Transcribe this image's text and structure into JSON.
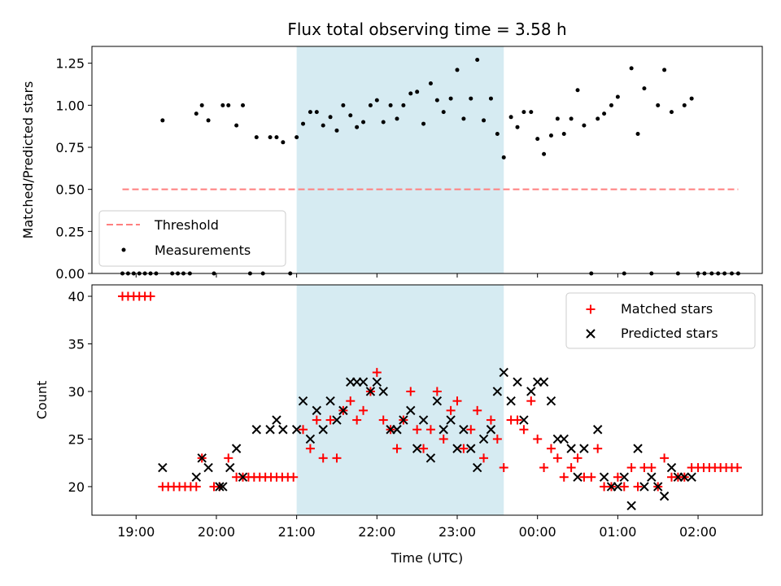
{
  "chart_data": [
    {
      "type": "scatter",
      "title": "Flux total observing time = 3.58 h",
      "xlabel": "",
      "ylabel": "Matched/Predicted stars",
      "xlim": [
        18.45,
        26.8
      ],
      "ylim": [
        0,
        1.35
      ],
      "yticks": [
        0,
        0.25,
        0.5,
        0.75,
        1.0,
        1.25
      ],
      "ytick_labels": [
        "0.00",
        "0.25",
        "0.50",
        "0.75",
        "1.00",
        "1.25"
      ],
      "shaded_region": {
        "x_start": 21.0,
        "x_end": 23.58,
        "color": "#add8e6"
      },
      "legend": {
        "position": "lower-left",
        "entries": [
          "Threshold",
          "Measurements"
        ]
      },
      "series": [
        {
          "name": "Threshold",
          "kind": "dashed-line",
          "color": "#ff7f7f",
          "x": [
            18.83,
            26.5
          ],
          "y": [
            0.5,
            0.5
          ]
        },
        {
          "name": "Measurements",
          "kind": "points",
          "color": "#000000",
          "x": [
            18.83,
            18.9,
            18.97,
            19.04,
            19.11,
            19.18,
            19.25,
            19.33,
            19.45,
            19.52,
            19.59,
            19.67,
            19.75,
            19.82,
            19.9,
            19.97,
            20.08,
            20.15,
            20.25,
            20.33,
            20.42,
            20.5,
            20.58,
            20.67,
            20.75,
            20.83,
            20.92,
            21.0,
            21.08,
            21.17,
            21.25,
            21.33,
            21.42,
            21.5,
            21.58,
            21.67,
            21.75,
            21.83,
            21.92,
            22.0,
            22.08,
            22.17,
            22.25,
            22.33,
            22.42,
            22.5,
            22.58,
            22.67,
            22.75,
            22.83,
            22.92,
            23.0,
            23.08,
            23.17,
            23.25,
            23.33,
            23.42,
            23.5,
            23.58,
            23.67,
            23.75,
            23.83,
            23.92,
            24.0,
            24.08,
            24.17,
            24.25,
            24.33,
            24.42,
            24.5,
            24.58,
            24.67,
            24.75,
            24.83,
            24.92,
            25.0,
            25.08,
            25.17,
            25.25,
            25.33,
            25.42,
            25.5,
            25.58,
            25.67,
            25.75,
            25.83,
            25.92,
            26.0,
            26.08,
            26.17,
            26.25,
            26.33,
            26.42,
            26.5
          ],
          "y": [
            0,
            0,
            0,
            0,
            0,
            0,
            0,
            0.91,
            0,
            0,
            0,
            0,
            0.95,
            1.0,
            0.91,
            0,
            1.0,
            1.0,
            0.88,
            1.0,
            0,
            0.81,
            0,
            0.81,
            0.81,
            0.78,
            0,
            0.81,
            0.89,
            0.96,
            0.96,
            0.88,
            0.93,
            0.85,
            1.0,
            0.94,
            0.87,
            0.9,
            1.0,
            1.03,
            0.9,
            1.0,
            0.92,
            1.0,
            1.07,
            1.08,
            0.89,
            1.13,
            1.03,
            0.96,
            1.04,
            1.21,
            0.92,
            1.04,
            1.27,
            0.91,
            1.04,
            0.83,
            0.69,
            0.93,
            0.87,
            0.96,
            0.96,
            0.8,
            0.71,
            0.82,
            0.92,
            0.83,
            0.92,
            1.09,
            0.88,
            0,
            0.92,
            0.95,
            1.0,
            1.05,
            0,
            1.22,
            0.83,
            1.1,
            0,
            1.0,
            1.21,
            0.96,
            0,
            1.0,
            1.04,
            0,
            0,
            0,
            0,
            0,
            0,
            0
          ]
        }
      ]
    },
    {
      "type": "scatter",
      "title": "",
      "xlabel": "Time (UTC)",
      "ylabel": "Count",
      "xlim": [
        18.45,
        26.8
      ],
      "ylim": [
        17,
        41.2
      ],
      "yticks": [
        20,
        25,
        30,
        35,
        40
      ],
      "ytick_labels": [
        "20",
        "25",
        "30",
        "35",
        "40"
      ],
      "xticks": [
        19,
        20,
        21,
        22,
        23,
        24,
        25,
        26
      ],
      "xtick_labels": [
        "19:00",
        "20:00",
        "21:00",
        "22:00",
        "23:00",
        "00:00",
        "01:00",
        "02:00"
      ],
      "shaded_region": {
        "x_start": 21.0,
        "x_end": 23.58,
        "color": "#add8e6"
      },
      "legend": {
        "position": "upper-right",
        "entries": [
          "Matched stars",
          "Predicted stars"
        ]
      },
      "series": [
        {
          "name": "Matched stars",
          "marker": "plus",
          "color": "#ff0000",
          "x": [
            18.83,
            18.9,
            18.97,
            19.04,
            19.11,
            19.18,
            19.33,
            19.4,
            19.47,
            19.54,
            19.61,
            19.68,
            19.75,
            19.82,
            19.97,
            20.04,
            20.15,
            20.25,
            20.33,
            20.4,
            20.47,
            20.54,
            20.61,
            20.68,
            20.75,
            20.82,
            20.89,
            20.96,
            21.08,
            21.17,
            21.25,
            21.33,
            21.42,
            21.5,
            21.58,
            21.67,
            21.75,
            21.83,
            21.92,
            22.0,
            22.08,
            22.17,
            22.25,
            22.33,
            22.42,
            22.5,
            22.58,
            22.67,
            22.75,
            22.83,
            22.92,
            23.0,
            23.08,
            23.17,
            23.25,
            23.33,
            23.42,
            23.5,
            23.58,
            23.67,
            23.75,
            23.83,
            23.92,
            24.0,
            24.08,
            24.17,
            24.25,
            24.33,
            24.42,
            24.5,
            24.58,
            24.67,
            24.75,
            24.83,
            24.92,
            25.0,
            25.08,
            25.17,
            25.25,
            25.33,
            25.42,
            25.5,
            25.58,
            25.67,
            25.75,
            25.83,
            25.92,
            26.0,
            26.07,
            26.14,
            26.21,
            26.28,
            26.35,
            26.42,
            26.49
          ],
          "y": [
            40,
            40,
            40,
            40,
            40,
            40,
            20,
            20,
            20,
            20,
            20,
            20,
            20,
            23,
            20,
            20,
            23,
            21,
            21,
            21,
            21,
            21,
            21,
            21,
            21,
            21,
            21,
            21,
            26,
            24,
            27,
            23,
            27,
            23,
            28,
            29,
            27,
            28,
            30,
            32,
            27,
            26,
            24,
            27,
            30,
            26,
            24,
            26,
            30,
            25,
            28,
            29,
            24,
            26,
            28,
            23,
            27,
            25,
            22,
            27,
            27,
            26,
            29,
            25,
            22,
            24,
            23,
            21,
            22,
            23,
            21,
            21,
            24,
            20,
            20,
            21,
            20,
            22,
            20,
            22,
            22,
            20,
            23,
            21,
            21,
            21,
            22,
            22,
            22,
            22,
            22,
            22,
            22,
            22,
            22
          ]
        },
        {
          "name": "Predicted stars",
          "marker": "x",
          "color": "#000000",
          "x": [
            19.33,
            19.75,
            19.82,
            19.9,
            20.04,
            20.08,
            20.17,
            20.25,
            20.33,
            20.5,
            20.67,
            20.75,
            20.83,
            21.0,
            21.08,
            21.17,
            21.25,
            21.33,
            21.42,
            21.5,
            21.58,
            21.67,
            21.75,
            21.83,
            21.92,
            22.0,
            22.08,
            22.17,
            22.25,
            22.33,
            22.42,
            22.5,
            22.58,
            22.67,
            22.75,
            22.83,
            22.92,
            23.0,
            23.08,
            23.17,
            23.25,
            23.33,
            23.42,
            23.5,
            23.58,
            23.67,
            23.75,
            23.83,
            23.92,
            24.0,
            24.08,
            24.17,
            24.25,
            24.33,
            24.42,
            24.5,
            24.58,
            24.75,
            24.83,
            24.92,
            25.0,
            25.08,
            25.17,
            25.25,
            25.33,
            25.42,
            25.5,
            25.58,
            25.67,
            25.75,
            25.83,
            25.92
          ],
          "y": [
            22,
            21,
            23,
            22,
            20,
            20,
            22,
            24,
            21,
            26,
            26,
            27,
            26,
            26,
            29,
            25,
            28,
            26,
            29,
            27,
            28,
            31,
            31,
            31,
            30,
            31,
            30,
            26,
            26,
            27,
            28,
            24,
            27,
            23,
            29,
            26,
            27,
            24,
            26,
            24,
            22,
            25,
            26,
            30,
            32,
            29,
            31,
            27,
            30,
            31,
            31,
            29,
            25,
            25,
            24,
            21,
            24,
            26,
            21,
            20,
            20,
            21,
            18,
            24,
            20,
            21,
            20,
            19,
            22,
            21,
            21,
            21
          ]
        }
      ]
    }
  ]
}
